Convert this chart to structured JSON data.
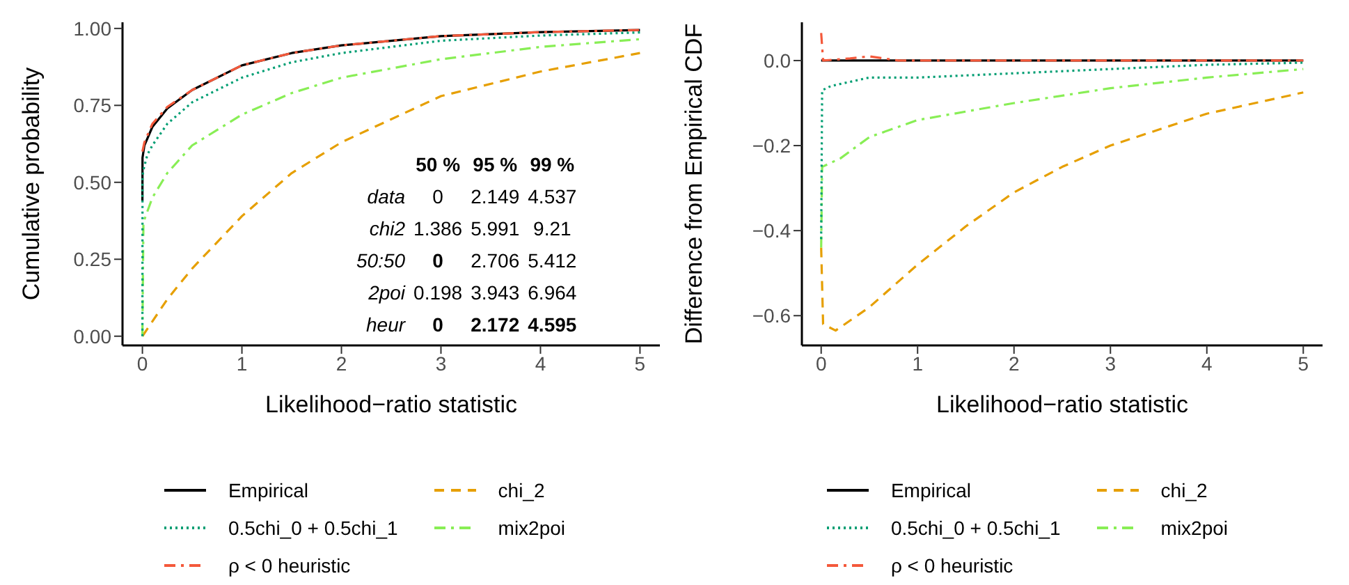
{
  "chart_data": [
    {
      "type": "line",
      "xlabel": "Likelihood−ratio statistic",
      "ylabel": "Cumulative probability",
      "xlim": [
        -0.2,
        5.2
      ],
      "xticks": [
        0,
        1,
        2,
        3,
        4,
        5
      ],
      "ylim": [
        -0.03,
        1.02
      ],
      "yticks": [
        {
          "value": 0,
          "label": "0.00"
        },
        {
          "value": 0.25,
          "label": "0.25"
        },
        {
          "value": 0.5,
          "label": "0.50"
        },
        {
          "value": 0.75,
          "label": "0.75"
        },
        {
          "value": 1,
          "label": "1.00"
        }
      ],
      "legend": "bottom",
      "annotations": [
        "50 %",
        "95 %",
        "99 %",
        "data",
        "0",
        "2.149",
        "4.537",
        "chi2",
        "1.386",
        "5.991",
        "9.21",
        "50:50",
        "0",
        "2.706",
        "5.412",
        "2poi",
        "0.198",
        "3.943",
        "6.964",
        "heur",
        "0",
        "2.172",
        "4.595"
      ],
      "series": [
        {
          "name": "Empirical",
          "color": "#000000",
          "line_style": "solid",
          "x": [
            0,
            0.001,
            0.02,
            0.1,
            0.25,
            0.5,
            1,
            1.5,
            2,
            3,
            4,
            5
          ],
          "values": [
            0.44,
            0.58,
            0.62,
            0.68,
            0.74,
            0.8,
            0.88,
            0.92,
            0.945,
            0.975,
            0.988,
            0.995
          ]
        },
        {
          "name": "chi_2",
          "color": "#e69f00",
          "line_style": "dashed",
          "x": [
            0,
            0.25,
            0.5,
            1,
            1.5,
            2,
            3,
            4,
            5
          ],
          "values": [
            0,
            0.12,
            0.22,
            0.39,
            0.53,
            0.63,
            0.78,
            0.86,
            0.92
          ]
        },
        {
          "name": "0.5chi_0 + 0.5chi_1",
          "color": "#009e73",
          "line_style": "dotted",
          "x": [
            0,
            0.001,
            0.01,
            0.05,
            0.1,
            0.25,
            0.5,
            1,
            1.5,
            2,
            3,
            4,
            5
          ],
          "values": [
            0,
            0.52,
            0.54,
            0.59,
            0.62,
            0.69,
            0.76,
            0.84,
            0.89,
            0.92,
            0.96,
            0.977,
            0.987
          ]
        },
        {
          "name": "mix2poi",
          "color": "#88ee55",
          "line_style": "dashdot",
          "x": [
            0,
            0.01,
            0.1,
            0.25,
            0.5,
            1,
            1.5,
            2,
            3,
            4,
            5
          ],
          "values": [
            0,
            0.37,
            0.45,
            0.53,
            0.62,
            0.72,
            0.79,
            0.84,
            0.9,
            0.94,
            0.965
          ]
        },
        {
          "name": "ρ < 0 heuristic",
          "color": "#f4593b",
          "line_style": "dashdot",
          "x": [
            0,
            0.02,
            0.1,
            0.25,
            0.5,
            1,
            1.5,
            2,
            3,
            4,
            5
          ],
          "values": [
            0.6,
            0.63,
            0.69,
            0.745,
            0.8,
            0.88,
            0.92,
            0.945,
            0.975,
            0.988,
            0.995
          ]
        }
      ]
    },
    {
      "type": "line",
      "xlabel": "Likelihood−ratio statistic",
      "ylabel": "Difference from Empirical CDF",
      "xlim": [
        -0.2,
        5.2
      ],
      "xticks": [
        0,
        1,
        2,
        3,
        4,
        5
      ],
      "ylim": [
        -0.67,
        0.09
      ],
      "yticks": [
        {
          "value": -0.6,
          "label": "−0.6"
        },
        {
          "value": -0.4,
          "label": "−0.4"
        },
        {
          "value": -0.2,
          "label": "−0.2"
        },
        {
          "value": 0,
          "label": "0.0"
        }
      ],
      "legend": "bottom",
      "series": [
        {
          "name": "Empirical",
          "color": "#000000",
          "line_style": "solid",
          "x": [
            0,
            5
          ],
          "values": [
            0,
            0
          ]
        },
        {
          "name": "chi_2",
          "color": "#e69f00",
          "line_style": "dashed",
          "x": [
            0,
            0.02,
            0.15,
            0.5,
            1,
            1.5,
            2,
            2.5,
            3,
            4,
            5
          ],
          "values": [
            -0.44,
            -0.62,
            -0.635,
            -0.58,
            -0.48,
            -0.39,
            -0.31,
            -0.25,
            -0.2,
            -0.125,
            -0.075
          ]
        },
        {
          "name": "0.5chi_0 + 0.5chi_1",
          "color": "#009e73",
          "line_style": "dotted",
          "x": [
            0,
            0.01,
            0.1,
            0.5,
            1,
            2,
            3,
            4,
            5
          ],
          "values": [
            -0.42,
            -0.07,
            -0.06,
            -0.04,
            -0.04,
            -0.03,
            -0.02,
            -0.01,
            -0.005
          ]
        },
        {
          "name": "mix2poi",
          "color": "#88ee55",
          "line_style": "dashdot",
          "x": [
            0,
            0.01,
            0.2,
            0.5,
            1,
            2,
            3,
            4,
            5
          ],
          "values": [
            -0.44,
            -0.25,
            -0.23,
            -0.18,
            -0.14,
            -0.1,
            -0.065,
            -0.04,
            -0.02
          ]
        },
        {
          "name": "ρ < 0 heuristic",
          "color": "#f4593b",
          "line_style": "dashdot",
          "x": [
            0,
            0.02,
            0.3,
            0.5,
            0.8,
            1,
            5
          ],
          "values": [
            0.065,
            0,
            0.005,
            0.01,
            0,
            0,
            0
          ]
        }
      ]
    }
  ]
}
